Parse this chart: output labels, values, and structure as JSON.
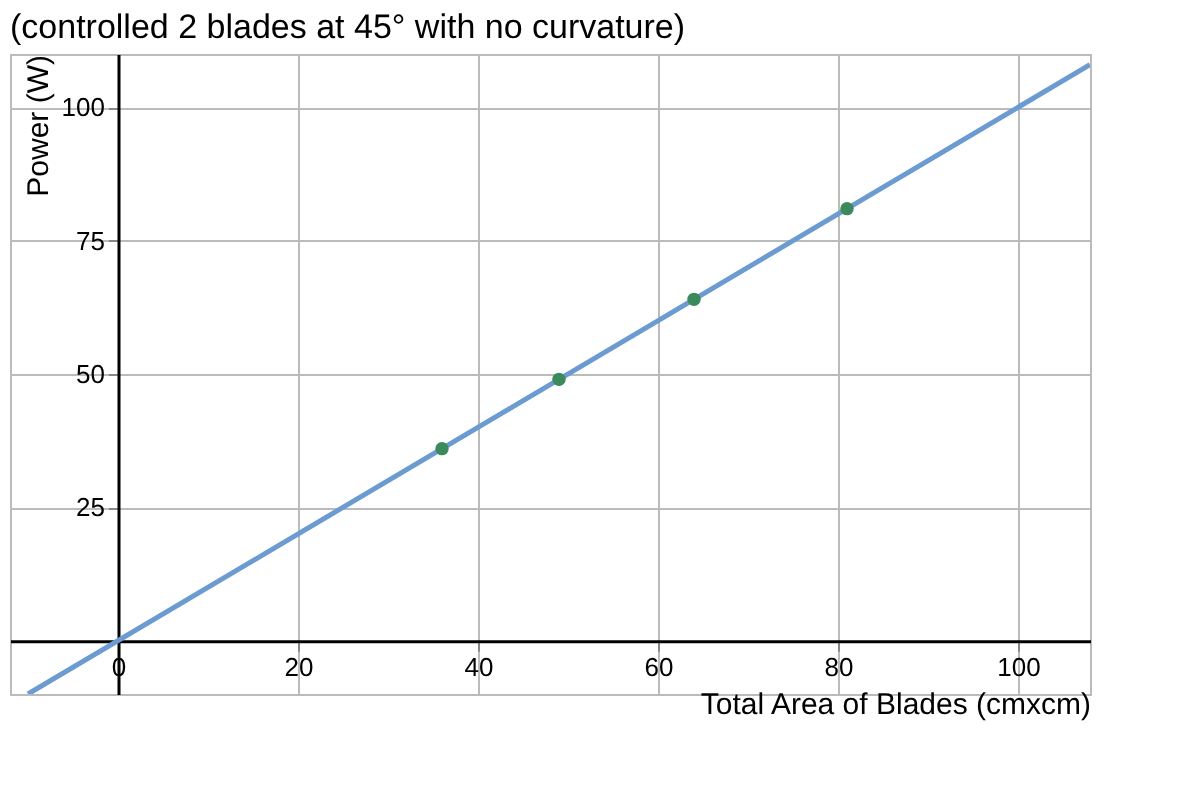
{
  "chart_data": {
    "type": "scatter",
    "title": "(controlled 2 blades at 45° with no curvature)",
    "xlabel": "Total Area of Blades (cmxcm)",
    "ylabel": "Power (W)",
    "xlim": [
      -12,
      108
    ],
    "ylim": [
      -10,
      110
    ],
    "xticks": [
      0,
      20,
      40,
      60,
      80,
      100
    ],
    "yticks": [
      25,
      50,
      75,
      100
    ],
    "grid": true,
    "series": [
      {
        "type": "line",
        "color": "#6b9bd1",
        "x": [
          -10,
          108
        ],
        "values": [
          -10,
          108
        ]
      },
      {
        "color": "#3a8a5c",
        "x": [
          36,
          49,
          64,
          81
        ],
        "values": [
          36,
          49,
          64,
          81
        ]
      }
    ]
  }
}
